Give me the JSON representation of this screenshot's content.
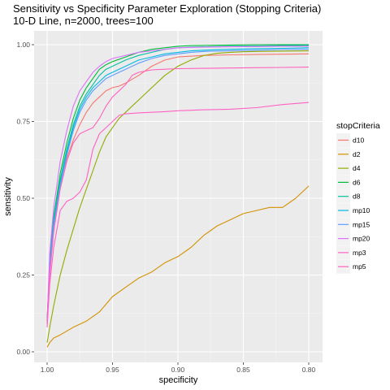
{
  "chart_data": {
    "type": "line",
    "title": "Sensitivity vs Specificity Parameter Exploration (Stopping Criteria)",
    "subtitle": "10-D Line, n=2000, trees=100",
    "xlabel": "specificity",
    "ylabel": "sensitivity",
    "xlim": [
      1.0,
      0.8
    ],
    "x_reversed": true,
    "ylim": [
      0.0,
      1.0
    ],
    "x_ticks": [
      1.0,
      0.95,
      0.9,
      0.85,
      0.8
    ],
    "x_tick_labels": [
      "1.00",
      "0.95",
      "0.90",
      "0.85",
      "0.80"
    ],
    "y_ticks": [
      0.0,
      0.25,
      0.5,
      0.75,
      1.0
    ],
    "y_tick_labels": [
      "0.00",
      "0.25",
      "0.50",
      "0.75",
      "1.00"
    ],
    "grid": true,
    "legend_title": "stopCriteria",
    "legend_position": "right",
    "series": [
      {
        "name": "d10",
        "color": "#F8766D",
        "x": [
          1.0,
          0.998,
          0.995,
          0.99,
          0.985,
          0.98,
          0.975,
          0.97,
          0.965,
          0.96,
          0.955,
          0.95,
          0.945,
          0.94,
          0.93,
          0.92,
          0.91,
          0.9,
          0.88,
          0.86,
          0.84,
          0.82,
          0.8
        ],
        "y": [
          0.1,
          0.27,
          0.42,
          0.55,
          0.63,
          0.69,
          0.74,
          0.78,
          0.81,
          0.83,
          0.85,
          0.86,
          0.865,
          0.875,
          0.9,
          0.93,
          0.95,
          0.96,
          0.965,
          0.967,
          0.968,
          0.969,
          0.97
        ]
      },
      {
        "name": "d2",
        "color": "#D39200",
        "x": [
          1.0,
          0.998,
          0.995,
          0.99,
          0.98,
          0.97,
          0.96,
          0.95,
          0.94,
          0.93,
          0.92,
          0.91,
          0.9,
          0.89,
          0.88,
          0.87,
          0.86,
          0.85,
          0.84,
          0.83,
          0.82,
          0.81,
          0.8
        ],
        "y": [
          0.015,
          0.03,
          0.045,
          0.055,
          0.08,
          0.1,
          0.13,
          0.18,
          0.21,
          0.24,
          0.26,
          0.29,
          0.31,
          0.34,
          0.38,
          0.41,
          0.43,
          0.45,
          0.46,
          0.47,
          0.47,
          0.5,
          0.54
        ]
      },
      {
        "name": "d4",
        "color": "#93AA00",
        "x": [
          1.0,
          0.998,
          0.995,
          0.99,
          0.985,
          0.98,
          0.975,
          0.97,
          0.965,
          0.96,
          0.955,
          0.95,
          0.945,
          0.94,
          0.93,
          0.92,
          0.91,
          0.9,
          0.89,
          0.88,
          0.87,
          0.86,
          0.85,
          0.84,
          0.82,
          0.8
        ],
        "y": [
          0.03,
          0.08,
          0.15,
          0.25,
          0.33,
          0.4,
          0.47,
          0.53,
          0.59,
          0.65,
          0.7,
          0.73,
          0.76,
          0.78,
          0.82,
          0.86,
          0.9,
          0.93,
          0.95,
          0.965,
          0.972,
          0.975,
          0.977,
          0.978,
          0.979,
          0.98
        ]
      },
      {
        "name": "d6",
        "color": "#00BA38",
        "x": [
          1.0,
          0.998,
          0.995,
          0.99,
          0.985,
          0.98,
          0.975,
          0.97,
          0.965,
          0.96,
          0.955,
          0.95,
          0.94,
          0.93,
          0.92,
          0.91,
          0.9,
          0.89,
          0.88,
          0.86,
          0.84,
          0.82,
          0.8
        ],
        "y": [
          0.1,
          0.3,
          0.44,
          0.58,
          0.68,
          0.76,
          0.82,
          0.86,
          0.89,
          0.92,
          0.935,
          0.945,
          0.96,
          0.975,
          0.985,
          0.99,
          0.995,
          0.997,
          0.998,
          0.999,
          1.0,
          1.0,
          1.0
        ]
      },
      {
        "name": "d8",
        "color": "#00C19F",
        "x": [
          1.0,
          0.998,
          0.995,
          0.99,
          0.985,
          0.98,
          0.975,
          0.97,
          0.965,
          0.96,
          0.955,
          0.95,
          0.94,
          0.93,
          0.92,
          0.91,
          0.9,
          0.89,
          0.88,
          0.86,
          0.84,
          0.82,
          0.8
        ],
        "y": [
          0.1,
          0.29,
          0.43,
          0.56,
          0.66,
          0.74,
          0.8,
          0.84,
          0.87,
          0.9,
          0.92,
          0.93,
          0.95,
          0.965,
          0.975,
          0.985,
          0.99,
          0.992,
          0.993,
          0.995,
          0.996,
          0.997,
          0.998
        ]
      },
      {
        "name": "mp10",
        "color": "#00B9E3",
        "x": [
          1.0,
          0.998,
          0.995,
          0.99,
          0.985,
          0.98,
          0.975,
          0.97,
          0.965,
          0.96,
          0.955,
          0.95,
          0.94,
          0.93,
          0.92,
          0.91,
          0.9,
          0.89,
          0.88,
          0.86,
          0.84,
          0.82,
          0.8
        ],
        "y": [
          0.1,
          0.28,
          0.42,
          0.55,
          0.65,
          0.73,
          0.79,
          0.83,
          0.86,
          0.88,
          0.9,
          0.91,
          0.93,
          0.95,
          0.96,
          0.97,
          0.975,
          0.98,
          0.982,
          0.985,
          0.987,
          0.988,
          0.99
        ]
      },
      {
        "name": "mp15",
        "color": "#619CFF",
        "x": [
          1.0,
          0.998,
          0.995,
          0.99,
          0.985,
          0.98,
          0.975,
          0.97,
          0.965,
          0.96,
          0.955,
          0.95,
          0.94,
          0.93,
          0.92,
          0.91,
          0.9,
          0.89,
          0.88,
          0.86,
          0.84,
          0.82,
          0.8
        ],
        "y": [
          0.1,
          0.27,
          0.41,
          0.54,
          0.64,
          0.72,
          0.78,
          0.82,
          0.85,
          0.87,
          0.89,
          0.9,
          0.92,
          0.94,
          0.955,
          0.965,
          0.97,
          0.975,
          0.978,
          0.98,
          0.982,
          0.984,
          0.985
        ]
      },
      {
        "name": "mp20",
        "color": "#DB72FB",
        "x": [
          1.0,
          0.998,
          0.995,
          0.99,
          0.985,
          0.98,
          0.975,
          0.97,
          0.965,
          0.96,
          0.955,
          0.95,
          0.94,
          0.93,
          0.92,
          0.91,
          0.9,
          0.88,
          0.86,
          0.84,
          0.82,
          0.8
        ],
        "y": [
          0.1,
          0.32,
          0.47,
          0.62,
          0.72,
          0.8,
          0.85,
          0.88,
          0.91,
          0.93,
          0.945,
          0.955,
          0.965,
          0.975,
          0.98,
          0.985,
          0.99,
          0.992,
          0.993,
          0.994,
          0.995,
          0.995
        ]
      },
      {
        "name": "mp3",
        "color": "#FF61C3",
        "x": [
          1.0,
          0.998,
          0.995,
          0.99,
          0.985,
          0.98,
          0.975,
          0.97,
          0.965,
          0.96,
          0.955,
          0.95,
          0.945,
          0.94,
          0.93,
          0.92,
          0.91,
          0.9,
          0.88,
          0.86,
          0.84,
          0.82,
          0.8
        ],
        "y": [
          0.08,
          0.22,
          0.34,
          0.46,
          0.49,
          0.5,
          0.52,
          0.56,
          0.66,
          0.71,
          0.73,
          0.75,
          0.77,
          0.775,
          0.778,
          0.78,
          0.782,
          0.785,
          0.788,
          0.79,
          0.795,
          0.805,
          0.812
        ]
      },
      {
        "name": "mp5",
        "color": "#FF62BC",
        "x": [
          1.0,
          0.998,
          0.995,
          0.99,
          0.985,
          0.98,
          0.975,
          0.97,
          0.965,
          0.96,
          0.955,
          0.95,
          0.945,
          0.94,
          0.935,
          0.93,
          0.92,
          0.91,
          0.9,
          0.88,
          0.86,
          0.84,
          0.82,
          0.8
        ],
        "y": [
          0.09,
          0.25,
          0.39,
          0.53,
          0.62,
          0.68,
          0.71,
          0.72,
          0.73,
          0.76,
          0.8,
          0.83,
          0.85,
          0.87,
          0.9,
          0.91,
          0.918,
          0.92,
          0.922,
          0.923,
          0.924,
          0.925,
          0.926,
          0.927
        ]
      }
    ]
  }
}
